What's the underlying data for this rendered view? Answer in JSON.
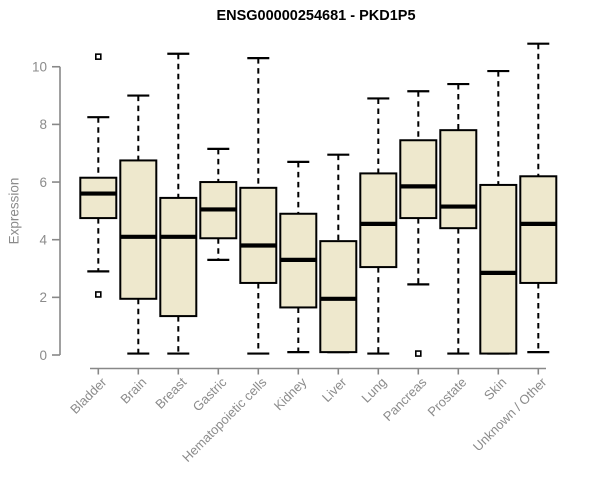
{
  "chart_data": {
    "type": "boxplot",
    "title": "ENSG00000254681 - PKD1P5",
    "ylabel": "Expression",
    "xlabel": "",
    "ylim": [
      0,
      10
    ],
    "yticks": [
      0,
      2,
      4,
      6,
      8,
      10
    ],
    "grid": false,
    "legend_position": "none",
    "box_fill_color": "#EEE8CD",
    "box_stroke_color": "#000000",
    "axis_color": "#888888",
    "label_color": "#8B8B8B",
    "categories": [
      "Bladder",
      "Brain",
      "Breast",
      "Gastric",
      "Hematopoietic cells",
      "Kidney",
      "Liver",
      "Lung",
      "Pancreas",
      "Prostate",
      "Skin",
      "Unknown / Other"
    ],
    "boxes": [
      {
        "category": "Bladder",
        "whisker_low": 2.9,
        "q1": 4.75,
        "median": 5.6,
        "q3": 6.15,
        "whisker_high": 8.25,
        "outliers": [
          10.35,
          2.1
        ]
      },
      {
        "category": "Brain",
        "whisker_low": 0.05,
        "q1": 1.95,
        "median": 4.1,
        "q3": 6.75,
        "whisker_high": 9.0,
        "outliers": []
      },
      {
        "category": "Breast",
        "whisker_low": 0.05,
        "q1": 1.35,
        "median": 4.1,
        "q3": 5.45,
        "whisker_high": 10.45,
        "outliers": []
      },
      {
        "category": "Gastric",
        "whisker_low": 3.3,
        "q1": 4.05,
        "median": 5.05,
        "q3": 6.0,
        "whisker_high": 7.15,
        "outliers": []
      },
      {
        "category": "Hematopoietic cells",
        "whisker_low": 0.05,
        "q1": 2.5,
        "median": 3.8,
        "q3": 5.8,
        "whisker_high": 10.3,
        "outliers": []
      },
      {
        "category": "Kidney",
        "whisker_low": 0.1,
        "q1": 1.65,
        "median": 3.3,
        "q3": 4.9,
        "whisker_high": 6.7,
        "outliers": []
      },
      {
        "category": "Liver",
        "whisker_low": 0.1,
        "q1": 0.1,
        "median": 1.95,
        "q3": 3.95,
        "whisker_high": 6.95,
        "outliers": []
      },
      {
        "category": "Lung",
        "whisker_low": 0.05,
        "q1": 3.05,
        "median": 4.55,
        "q3": 6.3,
        "whisker_high": 8.9,
        "outliers": []
      },
      {
        "category": "Pancreas",
        "whisker_low": 2.45,
        "q1": 4.75,
        "median": 5.85,
        "q3": 7.45,
        "whisker_high": 9.15,
        "outliers": [
          0.05
        ]
      },
      {
        "category": "Prostate",
        "whisker_low": 0.05,
        "q1": 4.4,
        "median": 5.15,
        "q3": 7.8,
        "whisker_high": 9.4,
        "outliers": []
      },
      {
        "category": "Skin",
        "whisker_low": 0.05,
        "q1": 0.05,
        "median": 2.85,
        "q3": 5.9,
        "whisker_high": 9.85,
        "outliers": []
      },
      {
        "category": "Unknown / Other",
        "whisker_low": 0.1,
        "q1": 2.5,
        "median": 4.55,
        "q3": 6.2,
        "whisker_high": 10.8,
        "outliers": []
      }
    ]
  }
}
